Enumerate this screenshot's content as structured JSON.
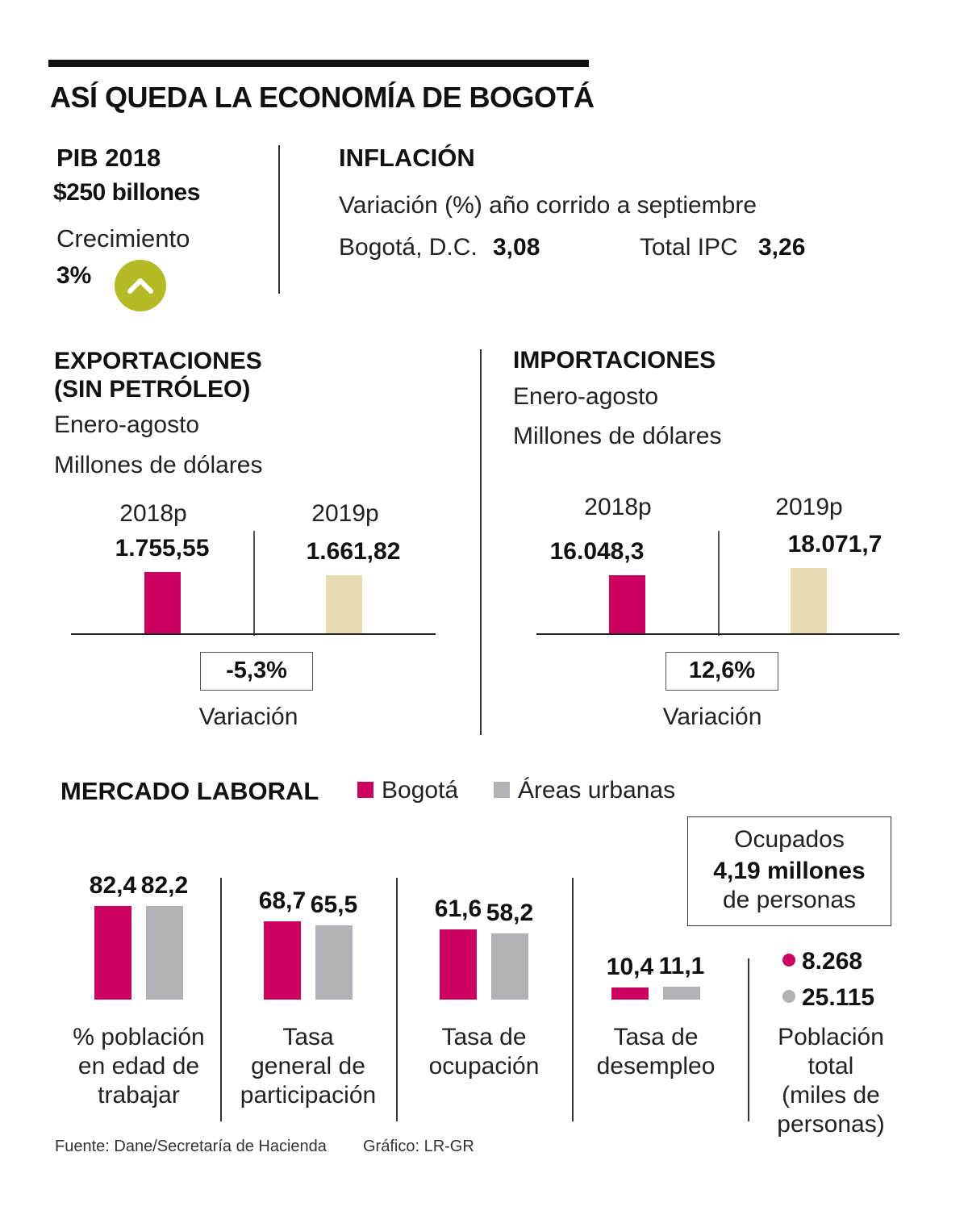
{
  "title": "ASÍ QUEDA LA ECONOMÍA DE BOGOTÁ",
  "colors": {
    "bogota": "#cc0060",
    "urbanas": "#b1b1b6",
    "y2018": "#cc0060",
    "y2019": "#e8dab2",
    "up_badge": "#b5bb27",
    "text": "#111111"
  },
  "pib": {
    "heading": "PIB 2018",
    "value": "$250 billones",
    "growth_label": "Crecimiento",
    "growth_value": "3%",
    "growth_icon": "chevron-up-icon"
  },
  "inflacion": {
    "heading": "INFLACIÓN",
    "subtitle": "Variación (%) año corrido a septiembre",
    "bogota_label": "Bogotá, D.C.",
    "bogota_value": "3,08",
    "total_label": "Total IPC",
    "total_value": "3,26"
  },
  "chart_data": [
    {
      "type": "bar",
      "title": "EXPORTACIONES (SIN PETRÓLEO)",
      "subtitle": "Enero-agosto",
      "unit": "Millones de dólares",
      "categories": [
        "2018p",
        "2019p"
      ],
      "values": [
        1755.55,
        1661.82
      ],
      "value_labels": [
        "1.755,55",
        "1.661,82"
      ],
      "variation": "-5,3%",
      "variation_label": "Variación"
    },
    {
      "type": "bar",
      "title": "IMPORTACIONES",
      "subtitle": "Enero-agosto",
      "unit": "Millones de dólares",
      "categories": [
        "2018p",
        "2019p"
      ],
      "values": [
        16048.3,
        18071.7
      ],
      "value_labels": [
        "16.048,3",
        "18.071,7"
      ],
      "variation": "12,6%",
      "variation_label": "Variación"
    },
    {
      "type": "bar",
      "title": "MERCADO LABORAL",
      "legend": [
        "Bogotá",
        "Áreas urbanas"
      ],
      "legend_position": "top",
      "categories": [
        "% población en edad de trabajar",
        "Tasa general de participación",
        "Tasa de ocupación",
        "Tasa de desempleo"
      ],
      "category_lines": [
        [
          "% población",
          "en edad de",
          "trabajar"
        ],
        [
          "Tasa",
          "general de",
          "participación"
        ],
        [
          "Tasa de",
          "ocupación"
        ],
        [
          "Tasa de",
          "desempleo"
        ]
      ],
      "series": [
        {
          "name": "Bogotá",
          "values": [
            82.4,
            68.7,
            61.6,
            10.4
          ],
          "labels": [
            "82,4",
            "68,7",
            "61,6",
            "10,4"
          ]
        },
        {
          "name": "Áreas urbanas",
          "values": [
            82.2,
            65.5,
            58.2,
            11.1
          ],
          "labels": [
            "82,2",
            "65,5",
            "58,2",
            "11,1"
          ]
        }
      ]
    }
  ],
  "ocupados": {
    "line1": "Ocupados",
    "line2": "4,19 millones",
    "line3": "de personas"
  },
  "poblacion": {
    "bogota": "8.268",
    "urbanas": "25.115",
    "label_lines": [
      "Población",
      "total",
      "(miles de",
      "personas)"
    ]
  },
  "footer": {
    "source": "Fuente: Dane/Secretaría de Hacienda",
    "credit": "Gráfico: LR-GR"
  }
}
